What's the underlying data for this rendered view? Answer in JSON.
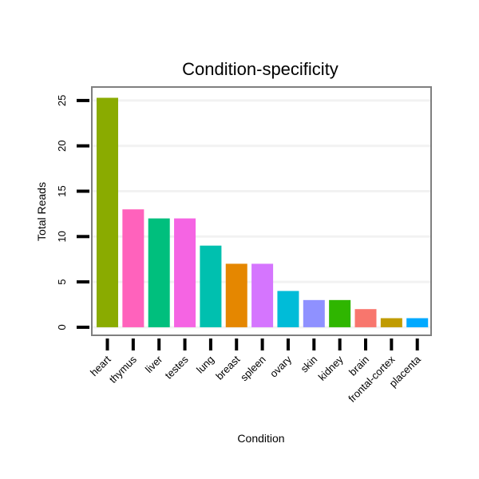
{
  "chart_data": {
    "type": "bar",
    "title": "Condition-specificity",
    "xlabel": "Condition",
    "ylabel": "Total Reads",
    "categories": [
      "heart",
      "thymus",
      "liver",
      "testes",
      "lung",
      "breast",
      "spleen",
      "ovary",
      "skin",
      "kidney",
      "brain",
      "frontal-cortex",
      "placenta"
    ],
    "values": [
      25.3,
      13,
      12,
      12,
      9,
      7,
      7,
      4,
      3,
      3,
      2,
      1,
      1
    ],
    "colors": [
      "#8AAB00",
      "#FF62BC",
      "#00BF7D",
      "#F564E3",
      "#00C0AF",
      "#E58700",
      "#D575FE",
      "#00BCD8",
      "#8F91FF",
      "#2FB600",
      "#F8766D",
      "#C09B00",
      "#00A9FF"
    ],
    "ylim": [
      -0.8,
      26.4
    ],
    "yticks": [
      0,
      5,
      10,
      15,
      20,
      25
    ],
    "ytick_labels": [
      "0",
      "5",
      "10",
      "15",
      "20",
      "25"
    ],
    "grid": true,
    "legend": "none"
  }
}
